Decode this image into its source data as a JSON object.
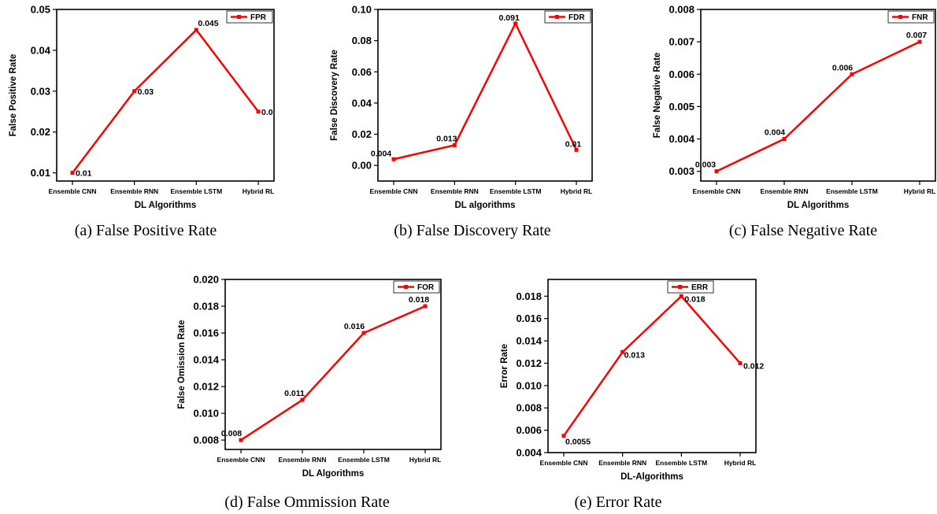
{
  "chart_data": [
    {
      "type": "line",
      "categories": [
        "Ensemble CNN",
        "Ensemble RNN",
        "Ensemble LSTM",
        "Hybrid RL"
      ],
      "series": [
        {
          "name": "FPR",
          "values": [
            0.01,
            0.03,
            0.045,
            0.025
          ]
        }
      ],
      "data_labels": [
        "0.01",
        "0.03",
        "0.045",
        "0.0"
      ],
      "xlabel": "DL Algorithms",
      "ylabel": "False Positive Rate",
      "ylim": [
        0.008,
        0.05
      ],
      "yticks": [
        "0.01",
        "0.02",
        "0.03",
        "0.04",
        "0.05"
      ],
      "ytick_values": [
        0.01,
        0.02,
        0.03,
        0.04,
        0.05
      ],
      "legend": "top-right",
      "grid": false,
      "caption": "(a) False Positive Rate"
    },
    {
      "type": "line",
      "categories": [
        "Ensemble CNN",
        "Ensemble RNN",
        "Ensemble LSTM",
        "Hybrid RL"
      ],
      "series": [
        {
          "name": "FDR",
          "values": [
            0.004,
            0.013,
            0.091,
            0.01
          ]
        }
      ],
      "data_labels": [
        "0.004",
        "0.013",
        "0.091",
        "0.01"
      ],
      "xlabel": "DL algorithms",
      "ylabel": "False Discovery Rate",
      "ylim": [
        -0.01,
        0.1
      ],
      "yticks": [
        "0.00",
        "0.02",
        "0.04",
        "0.06",
        "0.08",
        "0.10"
      ],
      "ytick_values": [
        0.0,
        0.02,
        0.04,
        0.06,
        0.08,
        0.1
      ],
      "legend": "top-right",
      "grid": false,
      "caption": "(b) False Discovery Rate"
    },
    {
      "type": "line",
      "categories": [
        "Ensemble CNN",
        "Ensemble RNN",
        "Ensemble LSTM",
        "Hybrid RL"
      ],
      "series": [
        {
          "name": "FNR",
          "values": [
            0.003,
            0.004,
            0.006,
            0.007
          ]
        }
      ],
      "data_labels": [
        "0.003",
        "0.004",
        "0.006",
        "0.007"
      ],
      "xlabel": "DL Algorithms",
      "ylabel": "False Negative Rate",
      "ylim": [
        0.0027,
        0.008
      ],
      "yticks": [
        "0.003",
        "0.004",
        "0.005",
        "0.006",
        "0.007",
        "0.008"
      ],
      "ytick_values": [
        0.003,
        0.004,
        0.005,
        0.006,
        0.007,
        0.008
      ],
      "legend": "top-right",
      "grid": false,
      "caption": "(c) False Negative Rate"
    },
    {
      "type": "line",
      "categories": [
        "Ensemble CNN",
        "Ensemble RNN",
        "Ensemble LSTM",
        "Hybrid RL"
      ],
      "series": [
        {
          "name": "FOR",
          "values": [
            0.008,
            0.011,
            0.016,
            0.018
          ]
        }
      ],
      "data_labels": [
        "0.008",
        "0.011",
        "0.016",
        "0.018"
      ],
      "xlabel": "DL Algorithms",
      "ylabel": "False Omission Rate",
      "ylim": [
        0.0073,
        0.02
      ],
      "yticks": [
        "0.008",
        "0.010",
        "0.012",
        "0.014",
        "0.016",
        "0.018",
        "0.020"
      ],
      "ytick_values": [
        0.008,
        0.01,
        0.012,
        0.014,
        0.016,
        0.018,
        0.02
      ],
      "legend": "top-right",
      "grid": false,
      "caption": "(d) False Ommission Rate"
    },
    {
      "type": "line",
      "categories": [
        "Ensemble CNN",
        "Ensemble RNN",
        "Ensemble LSTM",
        "Hybrid RL"
      ],
      "series": [
        {
          "name": "ERR",
          "values": [
            0.0055,
            0.013,
            0.018,
            0.012
          ]
        }
      ],
      "data_labels": [
        "0.0055",
        "0.013",
        "0.018",
        "0.012"
      ],
      "xlabel": "DL-Algorithms",
      "ylabel": "Error Rate",
      "ylim": [
        0.004,
        0.0195
      ],
      "yticks": [
        "0.004",
        "0.006",
        "0.008",
        "0.010",
        "0.012",
        "0.014",
        "0.016",
        "0.018"
      ],
      "ytick_values": [
        0.004,
        0.006,
        0.008,
        0.01,
        0.012,
        0.014,
        0.016,
        0.018
      ],
      "legend": "top-left",
      "grid": false,
      "caption": "(e) Error Rate"
    }
  ]
}
